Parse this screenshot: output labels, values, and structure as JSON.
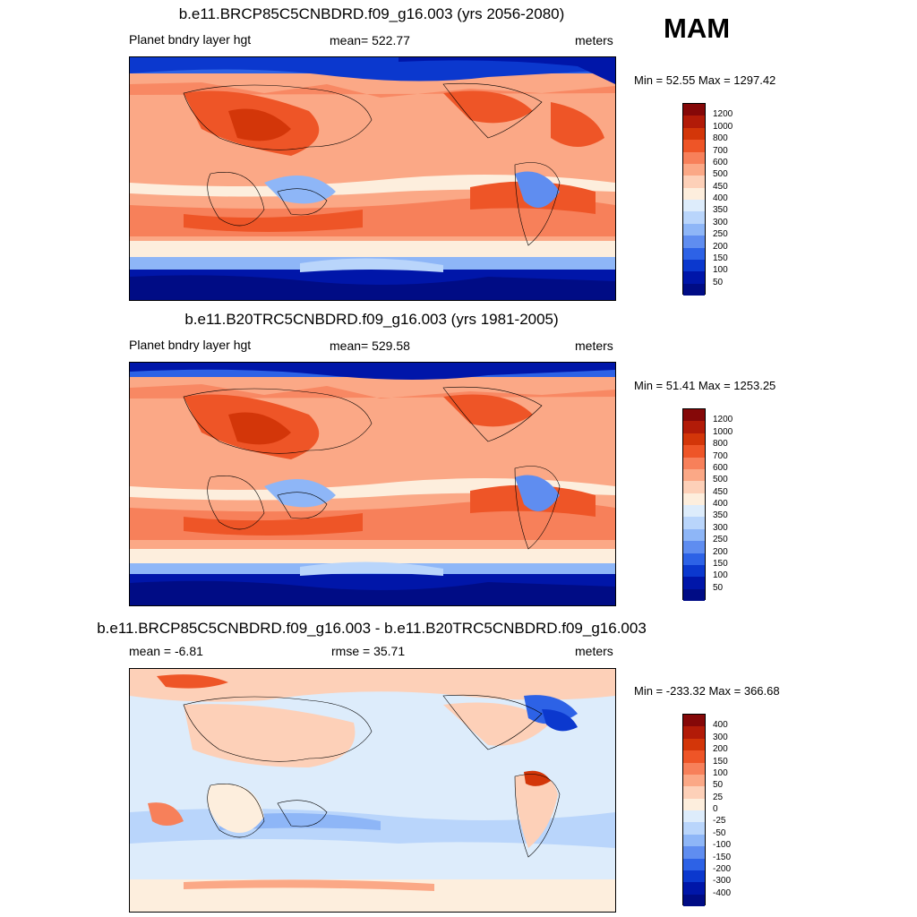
{
  "season": "MAM",
  "panels": [
    {
      "title": "b.e11.BRCP85C5CNBDRD.f09_g16.003 (yrs 2056-2080)",
      "left_label": "Planet bndry layer hgt",
      "center_label": "mean= 522.77",
      "right_label": "meters",
      "minmax": "Min =  52.55 Max = 1297.42",
      "colorbar": {
        "levels": [
          "1200",
          "1000",
          "800",
          "700",
          "600",
          "500",
          "450",
          "400",
          "350",
          "300",
          "250",
          "200",
          "150",
          "100",
          "50"
        ],
        "colors": [
          "#850808",
          "#b21b08",
          "#d33609",
          "#ee5527",
          "#f7805a",
          "#fba886",
          "#fdd0b8",
          "#fdeedd",
          "#ddecfb",
          "#b9d5fb",
          "#8eb6f7",
          "#5f8df0",
          "#2d62e6",
          "#0b38ce",
          "#0016a9",
          "#000c85"
        ]
      }
    },
    {
      "title": "b.e11.B20TRC5CNBDRD.f09_g16.003 (yrs 1981-2005)",
      "left_label": "Planet bndry layer hgt",
      "center_label": "mean= 529.58",
      "right_label": "meters",
      "minmax": "Min =  51.41 Max = 1253.25",
      "colorbar": {
        "levels": [
          "1200",
          "1000",
          "800",
          "700",
          "600",
          "500",
          "450",
          "400",
          "350",
          "300",
          "250",
          "200",
          "150",
          "100",
          "50"
        ],
        "colors": [
          "#850808",
          "#b21b08",
          "#d33609",
          "#ee5527",
          "#f7805a",
          "#fba886",
          "#fdd0b8",
          "#fdeedd",
          "#ddecfb",
          "#b9d5fb",
          "#8eb6f7",
          "#5f8df0",
          "#2d62e6",
          "#0b38ce",
          "#0016a9",
          "#000c85"
        ]
      }
    },
    {
      "title": "b.e11.BRCP85C5CNBDRD.f09_g16.003 - b.e11.B20TRC5CNBDRD.f09_g16.003",
      "left_label": "mean =  -6.81",
      "center_label": "rmse =  35.71",
      "right_label": "meters",
      "minmax": "Min = -233.32 Max = 366.68",
      "colorbar": {
        "levels": [
          "400",
          "300",
          "200",
          "150",
          "100",
          "50",
          "25",
          "0",
          "-25",
          "-50",
          "-100",
          "-150",
          "-200",
          "-300",
          "-400"
        ],
        "colors": [
          "#850808",
          "#b21b08",
          "#d33609",
          "#ee5527",
          "#f7805a",
          "#fba886",
          "#fdd0b8",
          "#fdeedd",
          "#ddecfb",
          "#b9d5fb",
          "#8eb6f7",
          "#5f8df0",
          "#2d62e6",
          "#0b38ce",
          "#0016a9",
          "#000c85"
        ]
      }
    }
  ]
}
